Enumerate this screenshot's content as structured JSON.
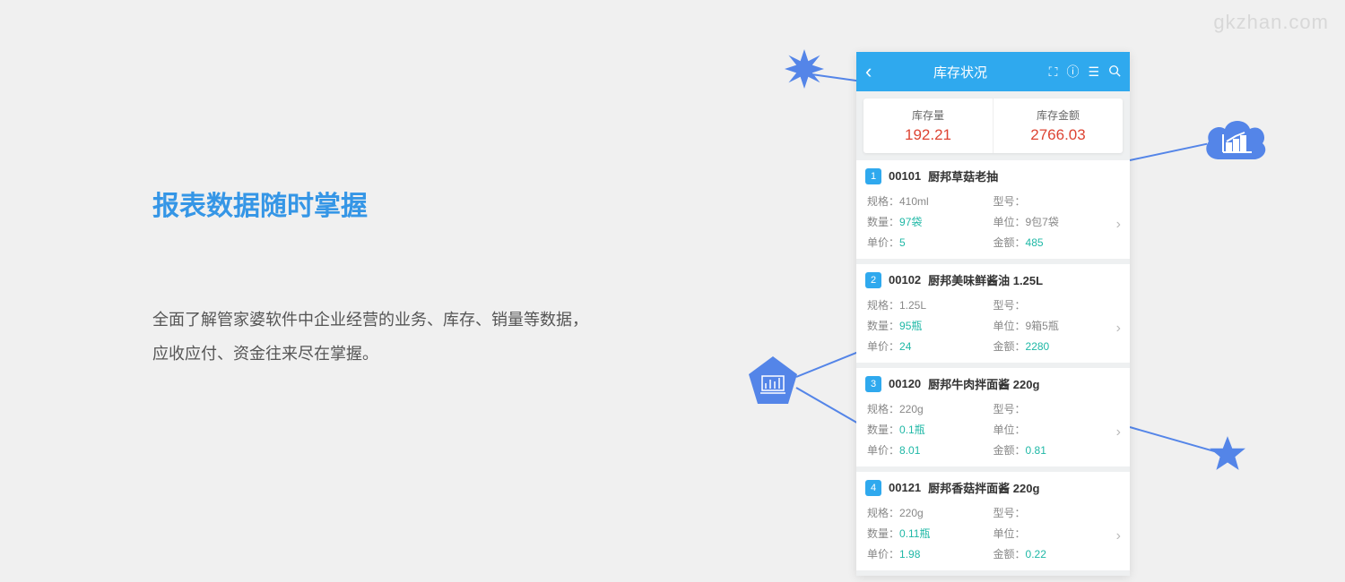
{
  "watermark": "gkzhan.com",
  "heading": "报表数据随时掌握",
  "description": "全面了解管家婆软件中企业经营的业务、库存、销量等数据，应收应付、资金往来尽在掌握。",
  "colors": {
    "accent": "#3596e6",
    "headerBg": "#2fa9ee",
    "valueRed": "#d43",
    "teal": "#1fb8a6",
    "shapeBlue": "#5485e8"
  },
  "phone": {
    "title": "库存状况",
    "summary": [
      {
        "label": "库存量",
        "value": "192.21"
      },
      {
        "label": "库存金额",
        "value": "2766.03"
      }
    ],
    "fields": {
      "spec": "规格：",
      "model": "型号：",
      "qty": "数量：",
      "unit": "单位：",
      "price": "单价：",
      "amount": "金额："
    },
    "items": [
      {
        "num": "1",
        "code": "00101",
        "name": "厨邦草菇老抽",
        "spec": "410ml",
        "model": "",
        "qty": "97袋",
        "unit": "9包7袋",
        "price": "5",
        "amount": "485"
      },
      {
        "num": "2",
        "code": "00102",
        "name": "厨邦美味鲜酱油 1.25L",
        "spec": "1.25L",
        "model": "",
        "qty": "95瓶",
        "unit": "9箱5瓶",
        "price": "24",
        "amount": "2280"
      },
      {
        "num": "3",
        "code": "00120",
        "name": "厨邦牛肉拌面酱 220g",
        "spec": "220g",
        "model": "",
        "qty": "0.1瓶",
        "unit": "",
        "price": "8.01",
        "amount": "0.81"
      },
      {
        "num": "4",
        "code": "00121",
        "name": "厨邦香菇拌面酱 220g",
        "spec": "220g",
        "model": "",
        "qty": "0.11瓶",
        "unit": "",
        "price": "1.98",
        "amount": "0.22"
      }
    ]
  }
}
